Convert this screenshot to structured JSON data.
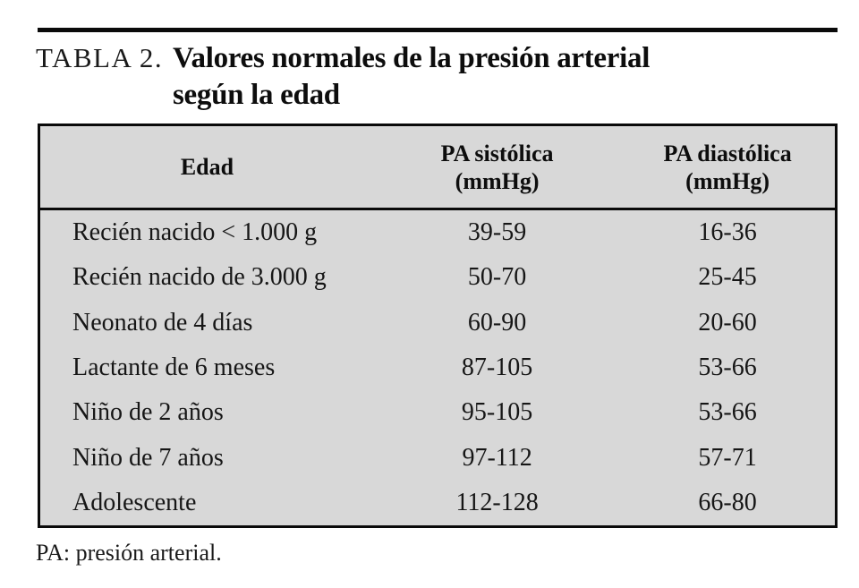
{
  "colors": {
    "table_background": "#d8d8d8",
    "rule": "#0a0a0a",
    "text": "#111111",
    "page_background": "#ffffff"
  },
  "title": {
    "label": "TABLA 2.",
    "lines": [
      "Valores normales de la presión arterial",
      "según la edad"
    ]
  },
  "table": {
    "columns": [
      {
        "id": "edad",
        "header": "Edad",
        "unit": ""
      },
      {
        "id": "sistolica",
        "header": "PA sistólica",
        "unit": "(mmHg)"
      },
      {
        "id": "diastolica",
        "header": "PA diastólica",
        "unit": "(mmHg)"
      }
    ],
    "rows": [
      {
        "edad": "Recién nacido < 1.000 g",
        "sistolica": "39-59",
        "diastolica": "16-36"
      },
      {
        "edad": "Recién nacido de 3.000 g",
        "sistolica": "50-70",
        "diastolica": "25-45"
      },
      {
        "edad": "Neonato de 4 días",
        "sistolica": "60-90",
        "diastolica": "20-60"
      },
      {
        "edad": "Lactante de 6 meses",
        "sistolica": "87-105",
        "diastolica": "53-66"
      },
      {
        "edad": "Niño de 2 años",
        "sistolica": "95-105",
        "diastolica": "53-66"
      },
      {
        "edad": "Niño de 7 años",
        "sistolica": "97-112",
        "diastolica": "57-71"
      },
      {
        "edad": "Adolescente",
        "sistolica": "112-128",
        "diastolica": "66-80"
      }
    ]
  },
  "footnote": {
    "text": "PA: presión arterial."
  }
}
